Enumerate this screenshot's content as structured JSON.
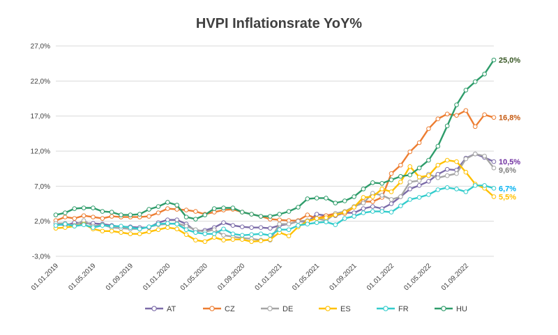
{
  "chart_data": {
    "type": "line",
    "title": "HVPI Inflationsrate YoY%",
    "xlabel": "",
    "ylabel": "",
    "ylim": [
      -3.0,
      27.0
    ],
    "yticks": [
      "27,0%",
      "22,0%",
      "17,0%",
      "12,0%",
      "7,0%",
      "2,0%",
      "-3,0%"
    ],
    "ytick_values": [
      27,
      22,
      17,
      12,
      7,
      2,
      -3
    ],
    "xtick_labels": [
      "01.01.2019",
      "01.05.2019",
      "01.09.2019",
      "01.01.2020",
      "01.05.2020",
      "01.09.2020",
      "01.01.2021",
      "01.05.2021",
      "01.09.2021",
      "01.01.2022",
      "01.05.2022",
      "01.09.2022"
    ],
    "xtick_index": [
      0,
      4,
      8,
      12,
      16,
      20,
      24,
      28,
      32,
      36,
      40,
      44
    ],
    "n_months": 48,
    "grid": true,
    "legend_position": "bottom",
    "series": [
      {
        "name": "AT",
        "color": "#7B6BA8",
        "end_label": "10,5%",
        "end_label_color": "#7030A0",
        "values": [
          1.7,
          1.4,
          1.8,
          1.7,
          1.7,
          1.6,
          1.4,
          1.2,
          1.2,
          1.1,
          1.1,
          1.8,
          2.2,
          2.2,
          1.6,
          0.6,
          0.7,
          1.1,
          1.8,
          1.4,
          1.2,
          1.1,
          1.1,
          1.0,
          1.4,
          1.6,
          2.0,
          1.9,
          3.0,
          2.8,
          2.8,
          3.2,
          3.2,
          3.8,
          4.1,
          3.8,
          4.5,
          5.5,
          6.6,
          7.1,
          7.7,
          8.7,
          9.4,
          9.3,
          11.0,
          11.6,
          11.1,
          10.5
        ]
      },
      {
        "name": "CZ",
        "color": "#ED7D31",
        "end_label": "16,8%",
        "end_label_color": "#C55A11",
        "values": [
          2.1,
          2.6,
          2.4,
          2.8,
          2.6,
          2.4,
          2.7,
          2.6,
          2.6,
          2.6,
          2.7,
          3.2,
          3.8,
          3.7,
          3.6,
          3.4,
          3.0,
          3.3,
          3.6,
          3.7,
          3.3,
          3.0,
          2.7,
          2.3,
          2.2,
          2.1,
          2.1,
          2.9,
          2.4,
          2.8,
          3.1,
          3.1,
          4.0,
          4.8,
          4.8,
          5.4,
          8.8,
          10.0,
          11.9,
          13.2,
          15.2,
          16.6,
          17.3,
          17.1,
          17.8,
          15.5,
          17.2,
          16.8
        ]
      },
      {
        "name": "DE",
        "color": "#A5A5A5",
        "end_label": "9,6%",
        "end_label_color": "#7F7F7F",
        "values": [
          1.7,
          1.7,
          1.4,
          2.1,
          1.3,
          1.5,
          1.1,
          1.0,
          0.9,
          0.9,
          1.2,
          1.5,
          1.6,
          1.7,
          1.3,
          0.8,
          0.5,
          0.8,
          0.0,
          -0.2,
          -0.4,
          -0.5,
          -0.7,
          -0.7,
          1.6,
          1.6,
          2.0,
          2.1,
          2.4,
          2.1,
          3.1,
          3.4,
          4.1,
          4.6,
          6.0,
          5.7,
          5.1,
          5.5,
          7.6,
          7.8,
          8.7,
          8.2,
          8.5,
          8.8,
          10.9,
          11.6,
          11.3,
          9.6
        ]
      },
      {
        "name": "ES",
        "color": "#FFC000",
        "end_label": "5,5%",
        "end_label_color": "#FFC000",
        "values": [
          1.0,
          1.1,
          1.3,
          1.6,
          0.9,
          0.6,
          0.6,
          0.4,
          0.2,
          0.2,
          0.5,
          0.8,
          1.1,
          0.9,
          0.1,
          -0.7,
          -0.9,
          -0.3,
          -0.7,
          -0.6,
          -0.6,
          -0.9,
          -0.8,
          -0.6,
          0.4,
          -0.1,
          1.2,
          2.0,
          2.4,
          2.5,
          2.9,
          3.3,
          4.0,
          5.4,
          5.5,
          6.6,
          6.2,
          7.6,
          9.8,
          8.3,
          8.5,
          10.0,
          10.7,
          10.5,
          9.0,
          7.3,
          6.7,
          5.5
        ]
      },
      {
        "name": "FR",
        "color": "#33CCCC",
        "end_label": "6,7%",
        "end_label_color": "#00B0F0",
        "values": [
          1.4,
          1.6,
          1.3,
          1.5,
          1.1,
          1.4,
          1.3,
          1.3,
          1.1,
          0.9,
          1.2,
          1.6,
          1.7,
          1.6,
          0.8,
          0.4,
          0.2,
          0.2,
          0.9,
          0.2,
          0.0,
          0.1,
          0.2,
          0.0,
          0.8,
          0.8,
          1.4,
          1.6,
          1.8,
          1.9,
          1.5,
          2.4,
          2.7,
          3.2,
          3.4,
          3.4,
          3.3,
          4.2,
          5.1,
          5.4,
          5.8,
          6.5,
          6.8,
          6.6,
          6.2,
          7.1,
          7.1,
          6.7
        ]
      },
      {
        "name": "HU",
        "color": "#2E9C6A",
        "end_label": "25,0%",
        "end_label_color": "#375623",
        "values": [
          2.9,
          3.2,
          3.8,
          3.9,
          3.9,
          3.4,
          3.3,
          2.9,
          2.9,
          3.0,
          3.7,
          4.1,
          4.7,
          4.3,
          2.6,
          2.3,
          2.9,
          3.8,
          3.9,
          3.9,
          3.3,
          3.0,
          2.7,
          2.7,
          3.0,
          3.4,
          4.0,
          5.2,
          5.3,
          5.3,
          4.6,
          4.9,
          5.5,
          6.6,
          7.5,
          7.4,
          7.9,
          8.4,
          8.6,
          9.6,
          10.7,
          12.7,
          15.6,
          18.6,
          20.7,
          21.9,
          23.0,
          25.0
        ]
      }
    ]
  }
}
